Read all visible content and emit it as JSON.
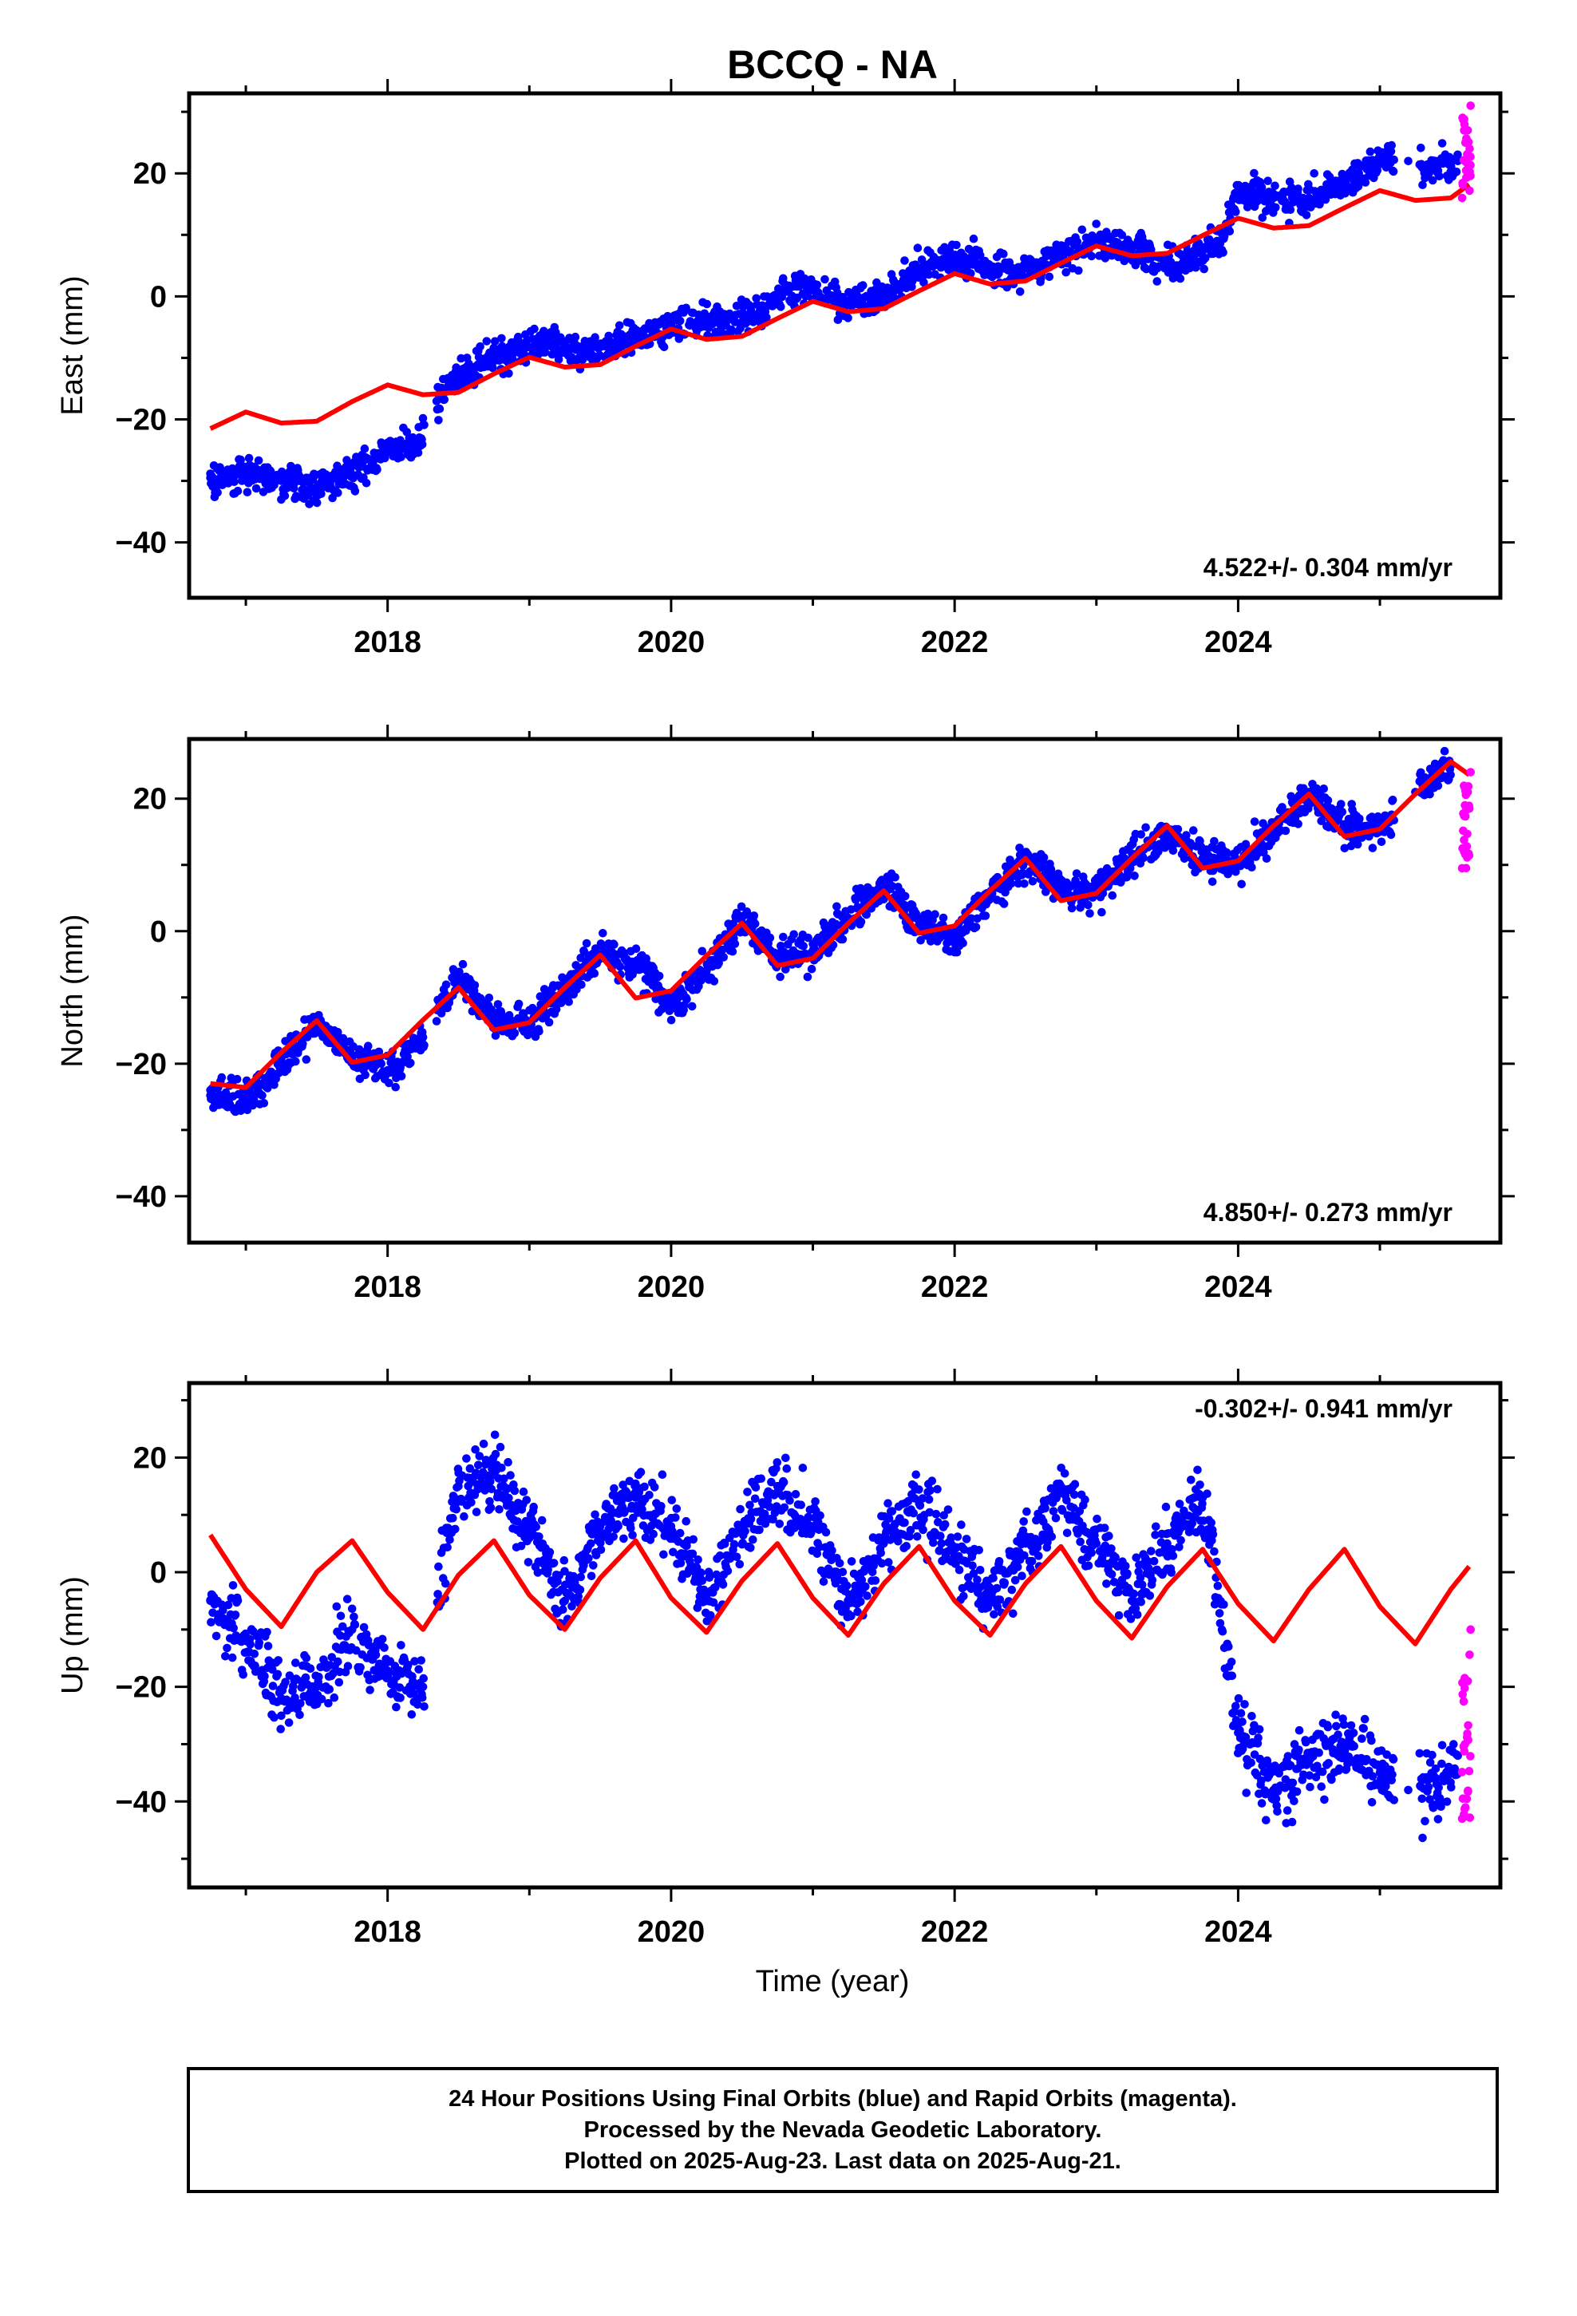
{
  "title": "BCCQ - NA",
  "xlabel": "Time (year)",
  "footer": {
    "line1": "24 Hour Positions Using Final Orbits (blue) and Rapid Orbits (magenta).",
    "line2": "Processed by the Nevada Geodetic Laboratory.",
    "line3": "Plotted on 2025-Aug-23. Last data on 2025-Aug-21."
  },
  "colors": {
    "final": "#0000ff",
    "rapid": "#ff00ff",
    "model": "#ff0000",
    "frame": "#000000"
  },
  "chart_data": [
    {
      "type": "scatter",
      "ylabel": "East (mm)",
      "rate_label": "4.522+/- 0.304 mm/yr",
      "xlim": [
        2016.6,
        2025.85
      ],
      "ylim": [
        -49,
        33
      ],
      "xticks": [
        2018,
        2020,
        2022,
        2024
      ],
      "yticks": [
        20,
        0,
        -20,
        -40
      ],
      "grid": false,
      "series": [
        {
          "name": "Final Orbits",
          "x": [
            2016.75,
            2017.0,
            2017.25,
            2017.5,
            2017.75,
            2018.0,
            2018.2,
            2018.4,
            2018.75,
            2019.1,
            2019.4,
            2019.7,
            2020.0,
            2020.3,
            2020.6,
            2020.9,
            2021.2,
            2021.5,
            2021.8,
            2022.1,
            2022.4,
            2022.7,
            2023.0,
            2023.3,
            2023.6,
            2023.9,
            2024.0,
            2024.25,
            2024.5,
            2024.75,
            2025.0,
            2025.2,
            2025.4,
            2025.55
          ],
          "values": [
            -29.5,
            -29,
            -30,
            -31,
            -29,
            -25,
            -24,
            -15,
            -10,
            -7,
            -9,
            -7,
            -5,
            -4,
            -3,
            2,
            -1,
            0,
            5,
            6,
            3,
            6,
            9,
            7,
            5,
            10,
            17,
            16,
            16,
            18,
            22,
            22,
            21,
            22
          ]
        },
        {
          "name": "Rapid Orbits",
          "x": [
            2025.58,
            2025.6,
            2025.62,
            2025.64
          ],
          "values": [
            16,
            22,
            27,
            31
          ]
        },
        {
          "name": "Model",
          "x": [
            2016.75,
            2017.0,
            2017.25,
            2017.5,
            2017.75,
            2018.0,
            2018.25,
            2018.5,
            2018.75,
            2019.0,
            2019.25,
            2019.5,
            2019.75,
            2020.0,
            2020.25,
            2020.5,
            2020.75,
            2021.0,
            2021.25,
            2021.5,
            2021.75,
            2022.0,
            2022.25,
            2022.5,
            2022.75,
            2023.0,
            2023.25,
            2023.5,
            2023.75,
            2024.0,
            2024.25,
            2024.5,
            2024.75,
            2025.0,
            2025.25,
            2025.5,
            2025.63
          ],
          "values": [
            -21.5,
            -18.8,
            -20.6,
            -20.3,
            -17.1,
            -14.4,
            -16.0,
            -15.6,
            -12.6,
            -9.9,
            -11.5,
            -11.1,
            -8.1,
            -5.3,
            -7.0,
            -6.5,
            -3.6,
            -0.8,
            -2.5,
            -2.0,
            0.9,
            3.7,
            2.0,
            2.5,
            5.4,
            8.2,
            6.6,
            7.0,
            9.9,
            12.7,
            11.1,
            11.5,
            14.4,
            17.2,
            15.6,
            16.0,
            18.2
          ]
        }
      ]
    },
    {
      "type": "scatter",
      "ylabel": "North (mm)",
      "rate_label": "4.850+/- 0.273 mm/yr",
      "xlim": [
        2016.6,
        2025.85
      ],
      "ylim": [
        -47,
        29
      ],
      "xticks": [
        2018,
        2020,
        2022,
        2024
      ],
      "yticks": [
        20,
        0,
        -20,
        -40
      ],
      "grid": false,
      "series": [
        {
          "name": "Final Orbits",
          "x": [
            2016.75,
            2017.0,
            2017.25,
            2017.5,
            2017.75,
            2018.0,
            2018.25,
            2018.5,
            2018.75,
            2019.0,
            2019.25,
            2019.5,
            2019.75,
            2020.0,
            2020.25,
            2020.5,
            2020.75,
            2021.0,
            2021.25,
            2021.5,
            2021.75,
            2022.0,
            2022.25,
            2022.5,
            2022.75,
            2023.0,
            2023.25,
            2023.5,
            2023.75,
            2024.0,
            2024.25,
            2024.5,
            2024.75,
            2025.0,
            2025.25,
            2025.5
          ],
          "values": [
            -24,
            -26,
            -20,
            -14,
            -19,
            -21,
            -16,
            -7,
            -13,
            -14,
            -9,
            -3,
            -5,
            -11,
            -6,
            2,
            -4,
            -3,
            2,
            7,
            1,
            -1,
            5,
            11,
            6,
            6,
            11,
            15,
            11,
            10,
            15,
            21,
            16,
            15,
            21,
            25
          ]
        },
        {
          "name": "Rapid Orbits",
          "x": [
            2025.58,
            2025.6,
            2025.62,
            2025.64
          ],
          "values": [
            9.5,
            19,
            21,
            24
          ]
        },
        {
          "name": "Model",
          "x": [
            2016.75,
            2017.0,
            2017.25,
            2017.5,
            2017.75,
            2018.0,
            2018.25,
            2018.5,
            2018.75,
            2019.0,
            2019.25,
            2019.5,
            2019.75,
            2020.0,
            2020.25,
            2020.5,
            2020.75,
            2021.0,
            2021.25,
            2021.5,
            2021.75,
            2022.0,
            2022.25,
            2022.5,
            2022.75,
            2023.0,
            2023.25,
            2023.5,
            2023.75,
            2024.0,
            2024.25,
            2024.5,
            2024.75,
            2025.0,
            2025.25,
            2025.5,
            2025.63
          ],
          "values": [
            -23.0,
            -23.6,
            -18.3,
            -13.5,
            -19.8,
            -18.7,
            -13.4,
            -8.5,
            -14.9,
            -13.8,
            -8.5,
            -3.6,
            -10.1,
            -9.0,
            -3.7,
            1.2,
            -5.2,
            -4.1,
            1.2,
            6.1,
            -0.3,
            0.8,
            6.1,
            11.0,
            4.6,
            5.7,
            11.0,
            15.9,
            9.5,
            10.6,
            15.9,
            20.7,
            14.3,
            15.4,
            20.7,
            25.6,
            23.6
          ]
        }
      ]
    },
    {
      "type": "scatter",
      "ylabel": "Up (mm)",
      "rate_label": "-0.302+/- 0.941 mm/yr",
      "xlim": [
        2016.6,
        2025.85
      ],
      "ylim": [
        -55,
        33
      ],
      "xticks": [
        2018,
        2020,
        2022,
        2024
      ],
      "yticks": [
        20,
        0,
        -20,
        -40
      ],
      "grid": false,
      "series": [
        {
          "name": "Final Orbits",
          "x": [
            2016.75,
            2017.0,
            2017.25,
            2017.5,
            2017.75,
            2018.0,
            2018.25,
            2018.5,
            2018.75,
            2019.0,
            2019.25,
            2019.5,
            2019.75,
            2020.0,
            2020.25,
            2020.5,
            2020.75,
            2021.0,
            2021.25,
            2021.5,
            2021.75,
            2022.0,
            2022.25,
            2022.5,
            2022.75,
            2023.0,
            2023.25,
            2023.5,
            2023.75,
            2024.0,
            2024.25,
            2024.5,
            2024.75,
            2025.0,
            2025.2,
            2025.4,
            2025.55
          ],
          "values": [
            -5,
            -12,
            -22,
            -20,
            -10,
            -18,
            -20,
            15,
            17,
            8,
            -5,
            8,
            13,
            8,
            -5,
            8,
            15,
            8,
            -5,
            5,
            12,
            3,
            -5,
            5,
            14,
            5,
            -5,
            5,
            13,
            -28,
            -38,
            -33,
            -30,
            -35,
            -38,
            -37,
            -32
          ]
        },
        {
          "name": "Rapid Orbits",
          "x": [
            2025.58,
            2025.6,
            2025.62,
            2025.64
          ],
          "values": [
            -43,
            -30,
            -19,
            -10
          ]
        },
        {
          "name": "Model",
          "x": [
            2016.75,
            2017.0,
            2017.25,
            2017.5,
            2017.75,
            2018.0,
            2018.25,
            2018.5,
            2018.75,
            2019.0,
            2019.25,
            2019.5,
            2019.75,
            2020.0,
            2020.25,
            2020.5,
            2020.75,
            2021.0,
            2021.25,
            2021.5,
            2021.75,
            2022.0,
            2022.25,
            2022.5,
            2022.75,
            2023.0,
            2023.25,
            2023.5,
            2023.75,
            2024.0,
            2024.25,
            2024.5,
            2024.75,
            2025.0,
            2025.25,
            2025.5,
            2025.63
          ],
          "values": [
            6.5,
            -3.0,
            -9.5,
            0.0,
            5.5,
            -3.5,
            -10.0,
            -0.5,
            5.5,
            -4.0,
            -10.0,
            -1.0,
            5.5,
            -4.5,
            -10.5,
            -1.5,
            5.0,
            -4.5,
            -11.0,
            -2.0,
            4.5,
            -5.0,
            -11.0,
            -2.0,
            4.5,
            -5.0,
            -11.5,
            -2.5,
            4.0,
            -5.5,
            -12.0,
            -3.0,
            4.0,
            -6.0,
            -12.5,
            -3.0,
            1.0
          ]
        }
      ]
    }
  ]
}
